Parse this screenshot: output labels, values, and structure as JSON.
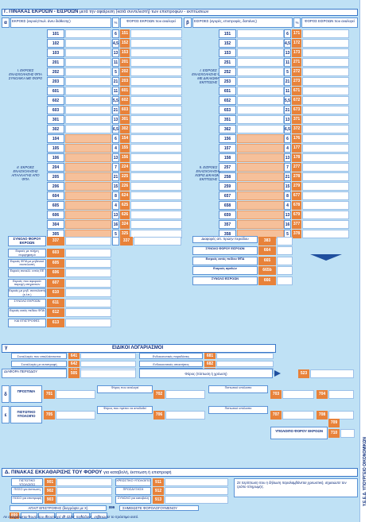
{
  "section_g": {
    "title": "Γ. ΠΙΝΑΚΑΣ ΕΚΡΟΩΝ - ΕΙΣΡΟΩΝ",
    "subtitle": "μετά την αφαίρεση (κατά συντελεστή) των επιστροφών - εκπτώσεων",
    "left": {
      "letter": "α",
      "header": "ΕΚΡΟΕΣ (εκροές/πωλ. άνευ διάθεσης)",
      "rate_header": "%",
      "tax_header": "ΦΟΡΟΣ ΕΚΡΟΩΝ που αναλογεί",
      "group1_label": "Ι. ΕΚΡΟΕΣ ΕΝΑΣΧΟΛΗΣΗΣ ΦΠΑ ΣΥΝΟΛΙΚΑ ΜΕ ΦΟΡΟ",
      "group2_label": "ΙΙ. ΕΚΡΟΕΣ ΕΝΑΣΧΟΛΗΣΗΣ ΑΠΑΛΛΑΓΗΣ ΑΠΟ ΦΠΑ",
      "total_label": "ΣΥΝΟΛΟ ΦΟΡΟΥ ΕΚΡΟΩΝ",
      "total_code": "337",
      "total_rate": "",
      "total_code2": "337"
    },
    "right": {
      "letter": "β",
      "header": "ΕΙΣΡΟΕΣ (αγορές, επιστροφές, δαπάνες)",
      "rate_header": "%",
      "tax_header": "ΦΟΡΟΣ ΕΙΣΡΟΩΝ που αναλογεί",
      "group1_label": "Ι. ΕΙΣΡΟΕΣ ΕΝΑΣΧΟΛΗΣΗΣ ΦΠΑ ΜΕ ΔΙΚΑΙΩΜΑ ΕΚΠΤΩΣΗΣ",
      "group2_label": "ΙΙ. ΕΙΣΡΟΕΣ ΕΝΑΣΧΟΛΗΣΗΣ ΧΩΡΙΣ ΔΙΚΑΙΩΜΑ ΕΚΠΤΩΣΗΣ",
      "extra_label": "Διαφορές απ. πρώην περιόδου",
      "extra_code": "383"
    },
    "left_rows": [
      {
        "code": "101",
        "rate": "6",
        "tcode": "151"
      },
      {
        "code": "102",
        "rate": "4,5",
        "tcode": "152"
      },
      {
        "code": "103",
        "rate": "13",
        "tcode": "153"
      },
      {
        "code": "201",
        "rate": "11",
        "tcode": "201"
      },
      {
        "code": "202",
        "rate": "5",
        "tcode": "202"
      },
      {
        "code": "203",
        "rate": "21",
        "tcode": "203"
      },
      {
        "code": "601",
        "rate": "11",
        "tcode": "601"
      },
      {
        "code": "602",
        "rate": "5,5",
        "tcode": "602"
      },
      {
        "code": "603",
        "rate": "21",
        "tcode": "603"
      },
      {
        "code": "301",
        "rate": "13",
        "tcode": "301"
      },
      {
        "code": "302",
        "rate": "6,5",
        "tcode": "302"
      },
      {
        "code": "104",
        "rate": "6",
        "tcode": "154"
      },
      {
        "code": "105",
        "rate": "4",
        "tcode": "155"
      },
      {
        "code": "106",
        "rate": "13",
        "tcode": "156"
      },
      {
        "code": "204",
        "rate": "7",
        "tcode": "224"
      },
      {
        "code": "205",
        "rate": "21",
        "tcode": "225"
      },
      {
        "code": "206",
        "rate": "15",
        "tcode": "226"
      },
      {
        "code": "604",
        "rate": "8",
        "tcode": "624"
      },
      {
        "code": "605",
        "rate": "4",
        "tcode": "625"
      },
      {
        "code": "606",
        "rate": "13",
        "tcode": "626"
      },
      {
        "code": "304",
        "rate": "16",
        "tcode": "324"
      },
      {
        "code": "305",
        "rate": "5",
        "tcode": "325"
      }
    ],
    "right_rows": [
      {
        "code": "151",
        "rate": "6",
        "tcode": "171"
      },
      {
        "code": "152",
        "rate": "4,5",
        "tcode": "172"
      },
      {
        "code": "153",
        "rate": "13",
        "tcode": "173"
      },
      {
        "code": "251",
        "rate": "11",
        "tcode": "271"
      },
      {
        "code": "252",
        "rate": "5",
        "tcode": "272"
      },
      {
        "code": "253",
        "rate": "21",
        "tcode": "273"
      },
      {
        "code": "651",
        "rate": "11",
        "tcode": "671"
      },
      {
        "code": "652",
        "rate": "5,5",
        "tcode": "672"
      },
      {
        "code": "653",
        "rate": "21",
        "tcode": "673"
      },
      {
        "code": "351",
        "rate": "13",
        "tcode": "371"
      },
      {
        "code": "362",
        "rate": "6,5",
        "tcode": "372"
      },
      {
        "code": "156",
        "rate": "6",
        "tcode": "176"
      },
      {
        "code": "157",
        "rate": "4",
        "tcode": "177"
      },
      {
        "code": "158",
        "rate": "13",
        "tcode": "178"
      },
      {
        "code": "257",
        "rate": "7",
        "tcode": "277"
      },
      {
        "code": "258",
        "rate": "21",
        "tcode": "278"
      },
      {
        "code": "259",
        "rate": "15",
        "tcode": "279"
      },
      {
        "code": "657",
        "rate": "8",
        "tcode": "677"
      },
      {
        "code": "658",
        "rate": "4",
        "tcode": "678"
      },
      {
        "code": "659",
        "rate": "13",
        "tcode": "679"
      },
      {
        "code": "357",
        "rate": "16",
        "tcode": "377"
      },
      {
        "code": "358",
        "rate": "5",
        "tcode": "378"
      }
    ],
    "left_summary": [
      {
        "label": "Εκροές με πλήρη συμψηφισμό",
        "code": "603"
      },
      {
        "label": "Εκροές ΦΠΑ με μηδενικό συντελεστή",
        "code": "605"
      },
      {
        "label": "Εκροές συναλλ. εντός ΕΕ",
        "code": "606"
      },
      {
        "label": "Εκροές που αφορούν παροχή υπηρεσιών",
        "code": "607"
      },
      {
        "label": "Εκροές με μηδ. συντελεστή (κ.λπ.)",
        "code": "610"
      },
      {
        "label": "ΣΥΝΟΛΟ ΕΚΡΟΩΝ",
        "code": "611"
      },
      {
        "label": "Εκροές εκτός πεδίου ΦΠΑ",
        "code": "612"
      },
      {
        "label": "ΚΑΙ ΕΠΙΣΤΡΟΦΕΣ",
        "code": "613"
      }
    ],
    "right_summary": [
      {
        "label": "ΣΥΝΟΛΟ ΦΟΡΟΥ ΕΙΣΡΟΩΝ",
        "code": "664"
      },
      {
        "label": "Εισροές εκτός πεδίου ΦΠΑ",
        "code": "665"
      },
      {
        "label": "Εισροές αγαθών",
        "code": "665b"
      },
      {
        "label": "ΣΥΝΟΛΟ ΕΙΣΡΟΩΝ",
        "code": "666"
      }
    ]
  },
  "section_y": {
    "letter": "γ",
    "title": "ΕΙΔΙΚΟΙ ΛΟΓΑΡΙΑΣΜΟΙ",
    "rows": [
      {
        "label": "Συναλλαγές που απαλλάσσονται",
        "code": "641",
        "label2": "Ενδοκοινοτικές παραδόσεις",
        "code2": "681"
      },
      {
        "label": "Συναλλαγές με αντιστροφή",
        "code": "642",
        "label2": "Ενδοκοινοτικές αποκτήσεις",
        "code2": "682"
      },
      {
        "label": "Προβλεπόμενες εκπτώσεις",
        "code": "643",
        "label2": "Λοιπές συναλλαγές",
        "code2": "683"
      }
    ],
    "period_label": "ΔΙΑΦΟΡΑ ΠΕΡΙΟΔΟΥ",
    "period_code": "505",
    "total_label": "Φόρος (πίστωση ή χρέωση)",
    "total_code": "523"
  },
  "section_z": {
    "rows": [
      {
        "letter": "δ",
        "label": "ΠΡΟΣΤΙΜΑ",
        "code": "701",
        "l2": "Φόρος που αναλογεί",
        "c2": "702",
        "l3": "Πιστωτικό υπόλοιπο",
        "c3": "703",
        "c4": "704"
      },
      {
        "letter": "ε",
        "label": "ΠΙΣΤΩΤΙΚΟ ΥΠΟΛΟΙΠΟ",
        "code": "705",
        "l2": "Φόρος που πρέπει να αποδοθεί",
        "c2": "706",
        "l3": "Πιστωτικό υπόλοιπο",
        "c3": "707",
        "c4": "708"
      }
    ],
    "final_label": "ΥΠΟΛΟΙΠΟ ΦΟΡΟΥ ΕΚΡΟΩΝ",
    "final_code": "709",
    "final_code2": "710"
  },
  "section_d": {
    "title": "Δ. ΠΙΝΑΚΑΣ ΕΚΚΑΘΑΡΙΣΗΣ ΤΟΥ ΦΟΡΟΥ",
    "subtitle": " για καταβολή, έκπτωση ή επιστροφή",
    "rows": [
      {
        "label": "ΠΙΣΤΩΤΙΚΟ ΥΠΟΛΟΙΠΟ",
        "code": "901",
        "l2": "ΧΡΕΩΣΤΙΚΟ ΥΠΟΛΟΙΠΟ",
        "c2": "911"
      },
      {
        "label": "ΠΟΣΟ για έκπτωση",
        "code": "902",
        "l2": "ΠΡΟΣΑΥΞΗΣΗ",
        "c2": "912"
      },
      {
        "label": "ΠΟΣΟ για επιστροφή",
        "code": "903",
        "l2": "ΣΥΝΟΛΟ για καταβολή",
        "c2": "913"
      }
    ],
    "declaration": "Σε περίπτωση που η δήλωση παραλαμβάνεται χρεωστική, σημειώστε τον τρόπο πληρωμής.",
    "correction_label": "ΑΠΑΙΤ ΕΠΙΣΤΡΟΦΗΣ (διαγράψτε με Χ)",
    "correction_code": "899",
    "office_code": "899",
    "office_label": "ΣΗΜΕΙΩΣΤΕ ΦΟΡΟΛΟΓΟΥΜΕΝΟΥ",
    "cells": [
      "1",
      "2",
      "3",
      "4",
      "5"
    ]
  },
  "footnote": "Αν αναγράφεται ποσό που αντιστοιχεί σε άλλες περιόδους, σημειώστε το πρόστιμο αυτό.",
  "side_text": "Υ.Ε.Ε.Δ. ΥΠΟΥΡΓΕΙΟ ΟΙΚΟΝΟΜΙΚΩΝ"
}
